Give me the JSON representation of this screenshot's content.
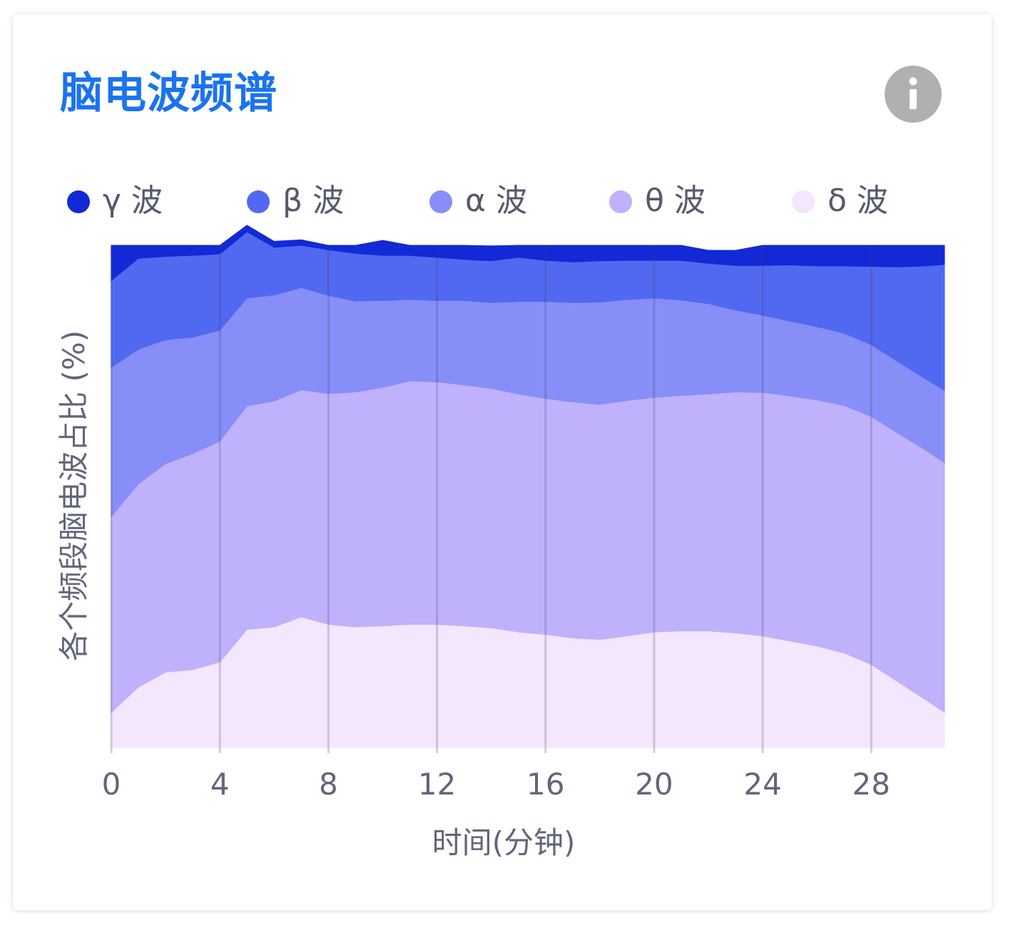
{
  "title": "脑电波频谱",
  "info_icon": "info-icon",
  "colors": {
    "title": "#1a73f0",
    "gamma": "#1229d6",
    "beta": "#5169f0",
    "alpha": "#878ef8",
    "theta": "#bfb1fb",
    "delta": "#f4e6fc"
  },
  "legend": [
    {
      "key": "gamma",
      "label": "γ 波",
      "color": "#1229d6"
    },
    {
      "key": "beta",
      "label": "β 波",
      "color": "#5169f0"
    },
    {
      "key": "alpha",
      "label": "α 波",
      "color": "#878ef8"
    },
    {
      "key": "theta",
      "label": "θ 波",
      "color": "#bfb1fb"
    },
    {
      "key": "delta",
      "label": "δ 波",
      "color": "#f4e6fc"
    }
  ],
  "chart_data": {
    "type": "area",
    "stacked": true,
    "normalized_percent": true,
    "xlabel": "时间(分钟)",
    "ylabel": "各个频段脑电波占比 (%)",
    "xlim": [
      0,
      30.7
    ],
    "ylim": [
      0,
      100
    ],
    "xticks": [
      0,
      4,
      8,
      12,
      16,
      20,
      24,
      28
    ],
    "grid": "vertical",
    "x": [
      0,
      1,
      2,
      3,
      4,
      5,
      6,
      7,
      8,
      9,
      10,
      11,
      12,
      13,
      14,
      15,
      16,
      17,
      18,
      19,
      20,
      21,
      22,
      23,
      24,
      25,
      26,
      27,
      28,
      29,
      30,
      30.7
    ],
    "series": [
      {
        "name": "δ 波",
        "key": "delta",
        "color": "#f4e6fc",
        "values": [
          7,
          12,
          15,
          15.5,
          17,
          23.5,
          24,
          26,
          24.5,
          24,
          24.2,
          24.5,
          24.5,
          24.2,
          23.8,
          23,
          22.5,
          21.8,
          21.5,
          22.2,
          23,
          23.2,
          23.2,
          22.8,
          22.2,
          21.2,
          20.2,
          18.8,
          16.5,
          13,
          9.5,
          7
        ]
      },
      {
        "name": "θ 波",
        "key": "theta",
        "color": "#bfb1fb",
        "values": [
          39,
          40.5,
          41.5,
          43,
          44,
          44.5,
          45,
          45.2,
          46,
          46.8,
          47.5,
          48.5,
          48.3,
          48,
          47.7,
          47.4,
          47,
          47,
          46.8,
          46.9,
          46.7,
          46.9,
          47.2,
          48,
          48.5,
          48.8,
          49,
          49.3,
          49.4,
          49.5,
          49.7,
          49.7
        ]
      },
      {
        "name": "α 波",
        "key": "alpha",
        "color": "#878ef8",
        "values": [
          29.7,
          26.8,
          24.7,
          23.2,
          22.1,
          21.5,
          21.1,
          20.4,
          19.5,
          18.1,
          17.3,
          16.2,
          16.2,
          16.8,
          17.1,
          18.4,
          19.3,
          19.8,
          20.4,
          20.1,
          19.8,
          19.0,
          18.0,
          16.3,
          15.4,
          14.9,
          14.6,
          14.4,
          14.3,
          14.3,
          14.2,
          14.4
        ]
      },
      {
        "name": "β 波",
        "key": "beta",
        "color": "#5169f0",
        "values": [
          17.3,
          18.1,
          16.6,
          16.3,
          15.2,
          13.2,
          9.5,
          8.4,
          9.1,
          9.5,
          9.0,
          8.8,
          8.6,
          8.2,
          8.3,
          8.8,
          8.2,
          8.1,
          8.2,
          7.8,
          7.5,
          7.9,
          8.0,
          8.9,
          9.9,
          11.2,
          12.1,
          13.4,
          15.6,
          18.9,
          22.5,
          25.1
        ]
      },
      {
        "name": "γ 波",
        "key": "gamma",
        "color": "#1229d6",
        "values": [
          7,
          2.6,
          2.2,
          2,
          1.7,
          1.3,
          1.2,
          1.1,
          0.9,
          1.6,
          3,
          2,
          2.4,
          2.8,
          3,
          2.4,
          3,
          3.3,
          3.1,
          3,
          3,
          3,
          2.6,
          3,
          4,
          3.9,
          4.1,
          4.1,
          4.2,
          4.3,
          4.1,
          3.8
        ]
      }
    ]
  }
}
